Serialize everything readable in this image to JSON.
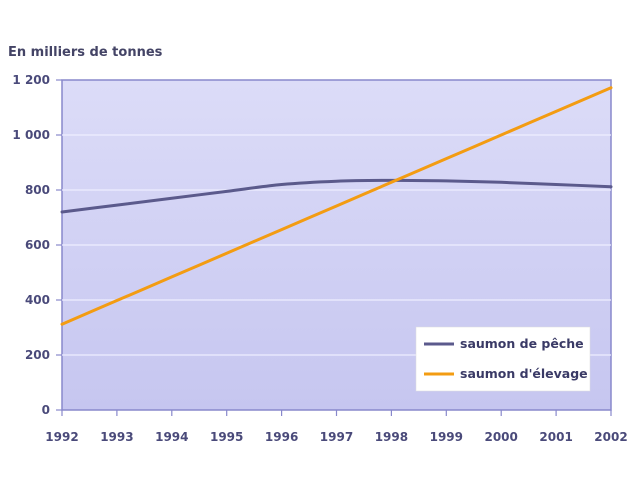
{
  "chart_data": {
    "type": "line",
    "ylabel": "En milliers de tonnes",
    "xlabel": "",
    "x": [
      "1992",
      "1993",
      "1994",
      "1995",
      "1996",
      "1997",
      "1998",
      "1999",
      "2000",
      "2001",
      "2002"
    ],
    "yticks": [
      0,
      200,
      400,
      600,
      800,
      1000,
      1200
    ],
    "ytick_labels": [
      "0",
      "200",
      "400",
      "600",
      "800",
      "1 000",
      "1 200"
    ],
    "ylim": [
      0,
      1200
    ],
    "grid": true,
    "legend_position": "bottom-right",
    "series": [
      {
        "name": "saumon de pêche",
        "color": "#5b5a8c",
        "values": [
          720,
          745,
          770,
          795,
          820,
          832,
          835,
          833,
          828,
          820,
          812
        ]
      },
      {
        "name": "saumon d'élevage",
        "color": "#f39c12",
        "values": [
          312,
          398,
          484,
          570,
          656,
          742,
          828,
          914,
          1000,
          1086,
          1172
        ]
      }
    ],
    "colors": {
      "plot_bg_top": "#dcdcf8",
      "plot_bg_bottom": "#c6c6f0",
      "axis": "#8888cc",
      "grid": "#eeeeff"
    }
  }
}
